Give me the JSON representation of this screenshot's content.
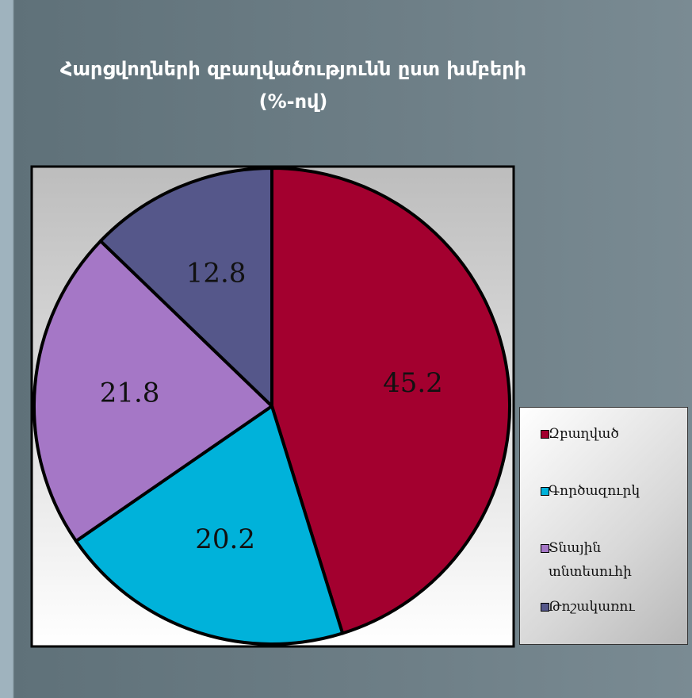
{
  "chart_data": {
    "type": "pie",
    "title": "Հարցվողների զբաղվածությունն ըստ խմբերի",
    "subtitle": "(%-ով)",
    "categories": [
      "Զբաղված",
      "Գործազուրկ",
      "Տնային տնտեսուհի",
      "Թոշակառու"
    ],
    "series": [
      {
        "values": [
          45.2,
          20.2,
          21.8,
          12.8
        ],
        "colors": [
          "#a3002f",
          "#00b2da",
          "#a577c6",
          "#55578a"
        ]
      }
    ],
    "legend": "right"
  }
}
